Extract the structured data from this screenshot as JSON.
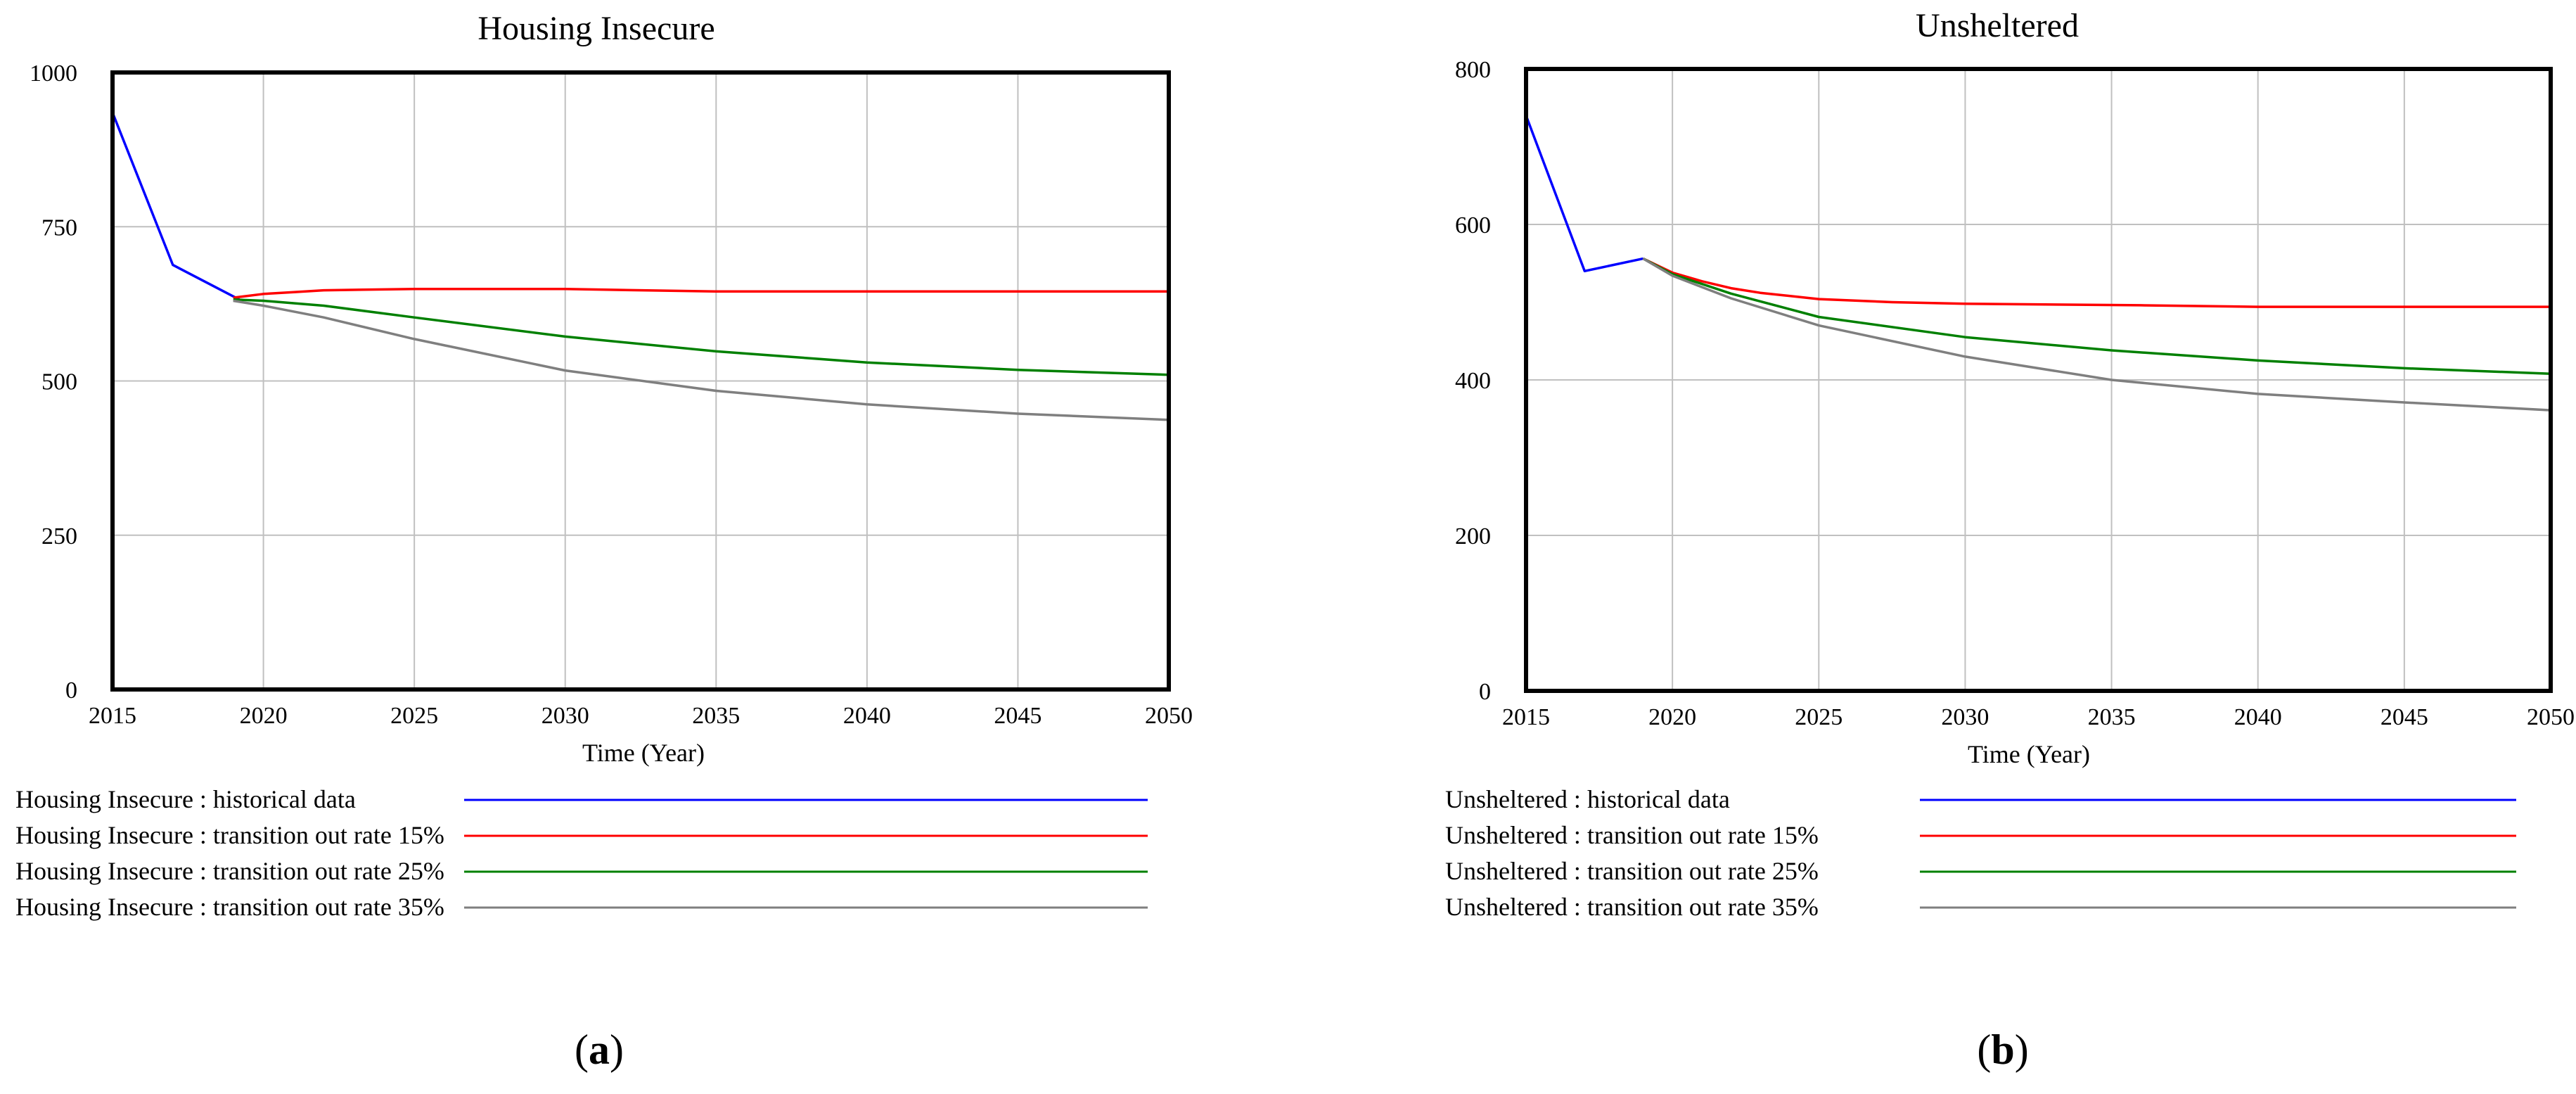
{
  "chart_data": [
    {
      "type": "line",
      "title": "Housing Insecure",
      "xlabel": "Time (Year)",
      "ylabel": "",
      "xlim": [
        2015,
        2050
      ],
      "ylim": [
        0,
        1000
      ],
      "xticks": [
        2015,
        2020,
        2025,
        2030,
        2035,
        2040,
        2045,
        2050
      ],
      "yticks": [
        0,
        250,
        500,
        750,
        1000
      ],
      "grid": true,
      "legend_position": "below",
      "caption_letter": "a",
      "series": [
        {
          "name": "Housing Insecure : historical data",
          "color": "#0000ff",
          "x": [
            2015,
            2017,
            2019.2
          ],
          "y": [
            935,
            688,
            632
          ]
        },
        {
          "name": "Housing Insecure : transition out rate 15%",
          "color": "#ff0000",
          "x": [
            2019,
            2020,
            2021,
            2022,
            2025,
            2030,
            2035,
            2040,
            2045,
            2050
          ],
          "y": [
            635,
            641,
            644,
            647,
            649,
            649,
            645,
            645,
            645,
            645
          ]
        },
        {
          "name": "Housing Insecure : transition out rate 25%",
          "color": "#008000",
          "x": [
            2019,
            2020,
            2022,
            2025,
            2030,
            2035,
            2040,
            2045,
            2050
          ],
          "y": [
            632,
            630,
            622,
            603,
            572,
            548,
            530,
            518,
            510
          ]
        },
        {
          "name": "Housing Insecure : transition out rate 35%",
          "color": "#7f7f7f",
          "x": [
            2019,
            2020,
            2022,
            2025,
            2030,
            2035,
            2040,
            2045,
            2050
          ],
          "y": [
            630,
            622,
            603,
            568,
            517,
            484,
            462,
            447,
            437
          ]
        }
      ]
    },
    {
      "type": "line",
      "title": "Unsheltered",
      "xlabel": "Time (Year)",
      "ylabel": "",
      "xlim": [
        2015,
        2050
      ],
      "ylim": [
        0,
        800
      ],
      "xticks": [
        2015,
        2020,
        2025,
        2030,
        2035,
        2040,
        2045,
        2050
      ],
      "yticks": [
        0,
        200,
        400,
        600,
        800
      ],
      "grid": true,
      "legend_position": "below",
      "caption_letter": "b",
      "series": [
        {
          "name": "Unsheltered : historical data",
          "color": "#0000ff",
          "x": [
            2015,
            2017,
            2019
          ],
          "y": [
            740,
            540,
            556
          ]
        },
        {
          "name": "Unsheltered : transition out rate 15%",
          "color": "#ff0000",
          "x": [
            2019,
            2020,
            2021,
            2022,
            2023,
            2025,
            2027.5,
            2030,
            2036,
            2040,
            2045,
            2050
          ],
          "y": [
            556,
            538,
            527,
            518,
            512,
            504,
            500,
            498,
            496,
            494,
            494,
            494
          ]
        },
        {
          "name": "Unsheltered : transition out rate 25%",
          "color": "#008000",
          "x": [
            2019,
            2020,
            2022,
            2025,
            2030,
            2035,
            2040,
            2045,
            2050
          ],
          "y": [
            556,
            536,
            511,
            481,
            455,
            438,
            425,
            415,
            408
          ]
        },
        {
          "name": "Unsheltered : transition out rate 35%",
          "color": "#7f7f7f",
          "x": [
            2019,
            2020,
            2022,
            2025,
            2030,
            2035,
            2040,
            2045,
            2050
          ],
          "y": [
            556,
            534,
            505,
            470,
            430,
            400,
            382,
            371,
            361
          ]
        }
      ]
    }
  ]
}
